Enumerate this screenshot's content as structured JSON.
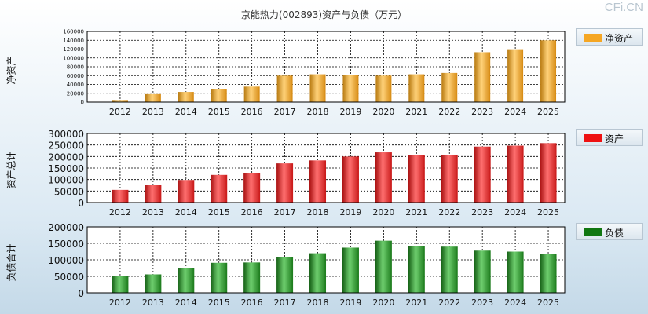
{
  "title": "京能热力(002893)资产与负债（万元）",
  "watermark": "CFi.CN",
  "chart_data": [
    {
      "type": "bar",
      "name": "net-assets",
      "ylabel": "净资产",
      "legend": "净资产",
      "color": "#f5a623",
      "categories": [
        "2012",
        "2013",
        "2014",
        "2015",
        "2016",
        "2017",
        "2018",
        "2019",
        "2020",
        "2021",
        "2022",
        "2023",
        "2024",
        "2025"
      ],
      "values": [
        3000,
        18000,
        23000,
        29000,
        35000,
        60000,
        63000,
        62000,
        60000,
        63000,
        66000,
        113000,
        118000,
        140000
      ],
      "ylim": [
        0,
        160000
      ],
      "yticks": [
        0,
        20000,
        40000,
        60000,
        80000,
        100000,
        120000,
        140000,
        160000
      ]
    },
    {
      "type": "bar",
      "name": "total-assets",
      "ylabel": "资产总计",
      "legend": "资产",
      "color": "#ee2222",
      "categories": [
        "2012",
        "2013",
        "2014",
        "2015",
        "2016",
        "2017",
        "2018",
        "2019",
        "2020",
        "2021",
        "2022",
        "2023",
        "2024",
        "2025"
      ],
      "values": [
        55000,
        75000,
        98000,
        120000,
        127000,
        170000,
        183000,
        200000,
        218000,
        205000,
        208000,
        243000,
        247000,
        258000
      ],
      "ylim": [
        0,
        300000
      ],
      "yticks": [
        0,
        50000,
        100000,
        150000,
        200000,
        250000,
        300000
      ]
    },
    {
      "type": "bar",
      "name": "total-liabilities",
      "ylabel": "负债合计",
      "legend": "负债",
      "color": "#1e7a1e",
      "categories": [
        "2012",
        "2013",
        "2014",
        "2015",
        "2016",
        "2017",
        "2018",
        "2019",
        "2020",
        "2021",
        "2022",
        "2023",
        "2024",
        "2025"
      ],
      "values": [
        51000,
        56000,
        75000,
        91000,
        92000,
        109000,
        120000,
        137000,
        158000,
        142000,
        140000,
        128000,
        125000,
        118000
      ],
      "ylim": [
        0,
        200000
      ],
      "yticks": [
        0,
        50000,
        100000,
        150000,
        200000
      ]
    }
  ]
}
